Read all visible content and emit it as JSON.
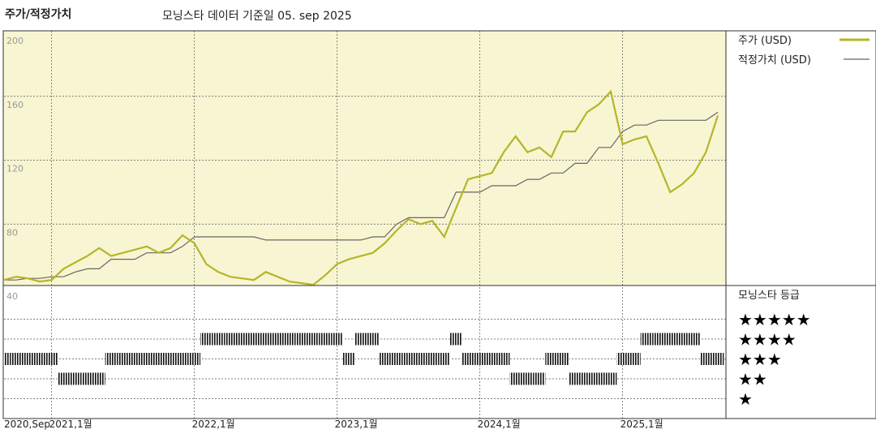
{
  "chart_data": {
    "type": "line",
    "title": "주가/적정가치",
    "subtitle": "모닝스타 데이터 기준일 05. sep 2025",
    "x": [
      "2020-09",
      "2020-10",
      "2020-11",
      "2020-12",
      "2021-01",
      "2021-02",
      "2021-03",
      "2021-04",
      "2021-05",
      "2021-06",
      "2021-07",
      "2021-08",
      "2021-09",
      "2021-10",
      "2021-11",
      "2021-12",
      "2022-01",
      "2022-02",
      "2022-03",
      "2022-04",
      "2022-05",
      "2022-06",
      "2022-07",
      "2022-08",
      "2022-09",
      "2022-10",
      "2022-11",
      "2022-12",
      "2023-01",
      "2023-02",
      "2023-03",
      "2023-04",
      "2023-05",
      "2023-06",
      "2023-07",
      "2023-08",
      "2023-09",
      "2023-10",
      "2023-11",
      "2023-12",
      "2024-01",
      "2024-02",
      "2024-03",
      "2024-04",
      "2024-05",
      "2024-06",
      "2024-07",
      "2024-08",
      "2024-09",
      "2024-10",
      "2024-11",
      "2024-12",
      "2025-01",
      "2025-02",
      "2025-03",
      "2025-04",
      "2025-05",
      "2025-06",
      "2025-07",
      "2025-08",
      "2025-09"
    ],
    "series": [
      {
        "name": "주가 (USD)",
        "color": "#b5b52a",
        "values": [
          45,
          47,
          46,
          44,
          45,
          52,
          56,
          60,
          65,
          60,
          62,
          64,
          66,
          62,
          65,
          73,
          68,
          55,
          50,
          47,
          46,
          45,
          50,
          47,
          44,
          43,
          42,
          48,
          55,
          58,
          60,
          62,
          68,
          76,
          83,
          80,
          82,
          72,
          90,
          108,
          110,
          112,
          125,
          135,
          125,
          128,
          122,
          138,
          138,
          150,
          155,
          163,
          130,
          133,
          135,
          118,
          100,
          105,
          112,
          125,
          148
        ]
      },
      {
        "name": "적정가치 (USD)",
        "color": "#666666",
        "values": [
          45,
          45,
          46,
          46,
          47,
          47,
          50,
          52,
          52,
          58,
          58,
          58,
          62,
          62,
          62,
          66,
          72,
          72,
          72,
          72,
          72,
          72,
          70,
          70,
          70,
          70,
          70,
          70,
          70,
          70,
          70,
          72,
          72,
          80,
          84,
          84,
          84,
          84,
          100,
          100,
          100,
          104,
          104,
          104,
          108,
          108,
          112,
          112,
          118,
          118,
          128,
          128,
          138,
          142,
          142,
          145,
          145,
          145,
          145,
          145,
          150
        ]
      }
    ],
    "ylim": [
      40,
      200
    ],
    "yticks": [
      40,
      80,
      120,
      160,
      200
    ],
    "xticks": [
      {
        "value": "2020-09",
        "label": "2020,Sep"
      },
      {
        "value": "2021-01",
        "label": "2021,1월"
      },
      {
        "value": "2022-01",
        "label": "2022,1월"
      },
      {
        "value": "2023-01",
        "label": "2023,1월"
      },
      {
        "value": "2024-01",
        "label": "2024,1월"
      },
      {
        "value": "2025-01",
        "label": "2025,1월"
      }
    ],
    "ratings": {
      "title": "모닝스타 등급",
      "levels": [
        {
          "value": 5,
          "label": "★★★★★"
        },
        {
          "value": 4,
          "label": "★★★★"
        },
        {
          "value": 3,
          "label": "★★★"
        },
        {
          "value": 2,
          "label": "★★"
        },
        {
          "value": 1,
          "label": "★"
        }
      ],
      "values": [
        3,
        3,
        3,
        3,
        3,
        2,
        2,
        2,
        2,
        3,
        3,
        3,
        3,
        3,
        3,
        3,
        3,
        4,
        4,
        4,
        4,
        4,
        4,
        4,
        4,
        4,
        4,
        4,
        4,
        3,
        4,
        4,
        3,
        3,
        3,
        3,
        3,
        3,
        4,
        3,
        3,
        3,
        3,
        2,
        2,
        2,
        3,
        3,
        2,
        2,
        2,
        2,
        3,
        3,
        4,
        4,
        4,
        4,
        4,
        3,
        3
      ]
    }
  }
}
